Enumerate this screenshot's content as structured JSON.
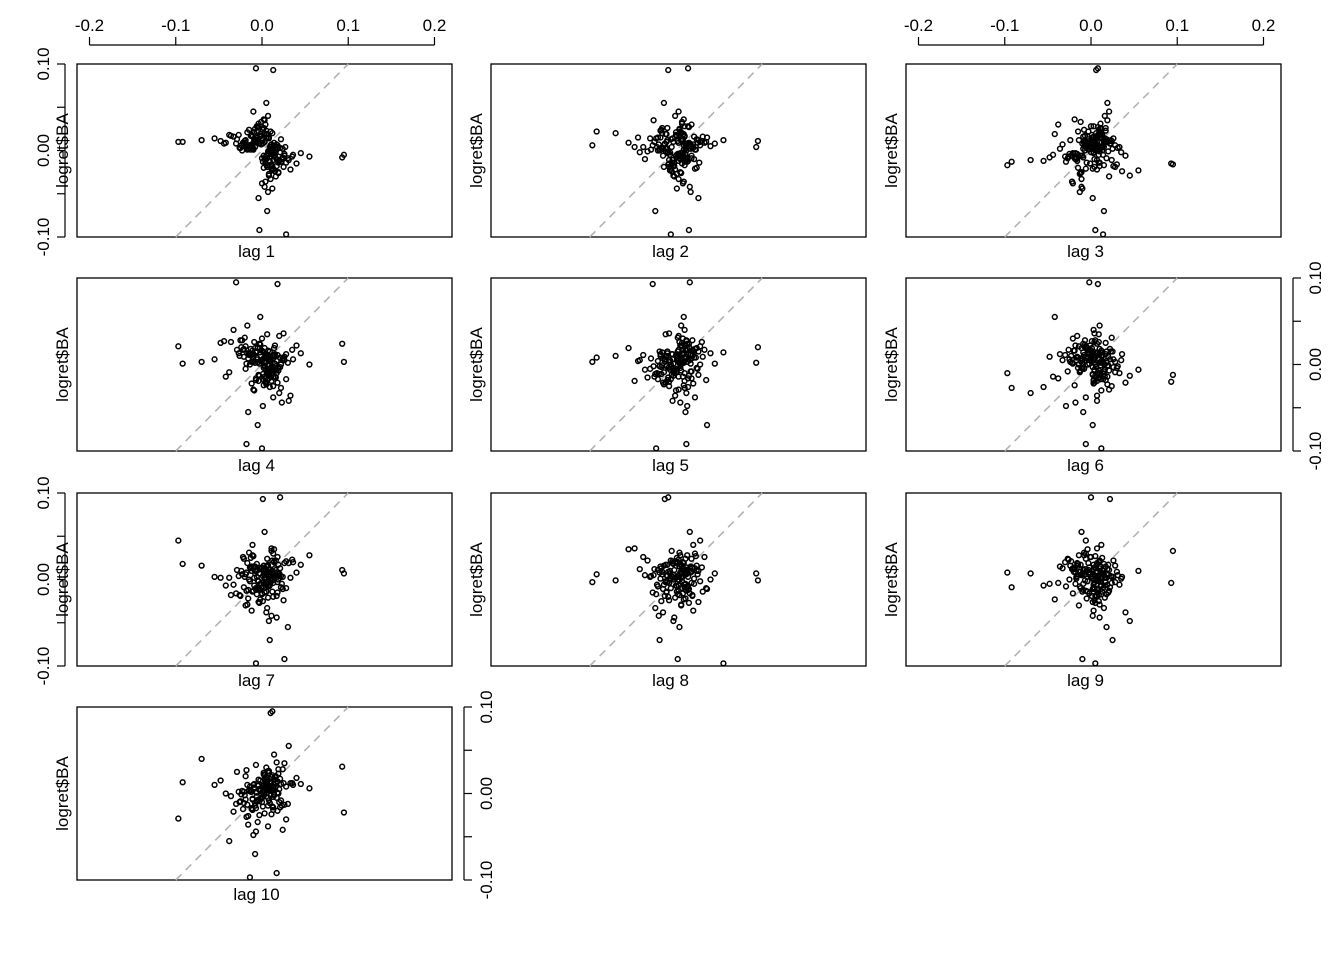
{
  "chart_data": {
    "type": "scatter",
    "title": "",
    "ylabel": "logret$BA",
    "panel_xlabels": [
      "lag 1",
      "lag 2",
      "lag 3",
      "lag 4",
      "lag 5",
      "lag 6",
      "lag 7",
      "lag 8",
      "lag 9",
      "lag 10"
    ],
    "lags": [
      1,
      2,
      3,
      4,
      5,
      6,
      7,
      8,
      9,
      10
    ],
    "xlim": [
      -0.2145,
      0.2203
    ],
    "ylim": [
      -0.1,
      0.1
    ],
    "x_ticks": [
      -0.2,
      -0.1,
      0.0,
      0.1,
      0.2
    ],
    "x_tick_labels": [
      "-0.2",
      "-0.1",
      "0.0",
      "0.1",
      "0.2"
    ],
    "y_ticks": [
      -0.1,
      -0.05,
      0.0,
      0.05,
      0.1
    ],
    "y_tick_labels": [
      "-0.10",
      "",
      "0.00",
      "",
      "0.10"
    ],
    "reference_line": {
      "type": "y=x",
      "style": "dashed",
      "color": "#b3b3b3"
    },
    "point_color": "#000000",
    "series": [
      0.004,
      -0.012,
      0.018,
      0.002,
      -0.006,
      0.011,
      -0.021,
      0.007,
      0.015,
      -0.003,
      0.009,
      -0.017,
      0.001,
      0.024,
      -0.008,
      0.013,
      -0.011,
      0.005,
      0.019,
      -0.025,
      0.003,
      0.01,
      -0.004,
      0.028,
      -0.014,
      0.006,
      -0.019,
      0.012,
      0.0,
      -0.009,
      0.021,
      -0.002,
      0.016,
      -0.03,
      0.008,
      0.014,
      -0.007,
      0.095,
      -0.005,
      0.011,
      -0.016,
      0.003,
      0.02,
      -0.012,
      0.007,
      -0.001,
      0.033,
      -0.022,
      0.009,
      0.004,
      -0.036,
      0.017,
      -0.01,
      0.002,
      0.026,
      -0.006,
      0.012,
      -0.018,
      0.005,
      0.015,
      -0.003,
      -0.092,
      0.01,
      0.022,
      -0.013,
      0.001,
      0.008,
      -0.027,
      0.018,
      0.006,
      -0.009,
      0.013,
      0.093,
      -0.008,
      0.004,
      -0.015,
      0.024,
      0.002,
      -0.02,
      0.011,
      0.007,
      -0.004,
      0.031,
      -0.011,
      0.016,
      0.003,
      -0.042,
      0.009,
      -0.002,
      0.019,
      -0.014,
      0.005,
      0.055,
      -0.007,
      0.012,
      -0.023,
      0.0,
      0.014,
      -0.006,
      0.028,
      -0.097,
      0.01,
      0.006,
      -0.017,
      0.021,
      0.003,
      -0.01,
      0.045,
      -0.003,
      0.008,
      -0.029,
      0.013,
      0.001,
      -0.013,
      0.017,
      0.007,
      -0.048,
      0.011,
      0.004,
      -0.008,
      0.025,
      -0.019,
      0.009,
      0.002,
      0.036,
      -0.005,
      0.015,
      -0.024,
      0.006,
      -0.07,
      0.012,
      0.02,
      -0.011,
      0.003,
      0.01,
      -0.033,
      0.016,
      -0.001,
      0.007,
      0.04,
      -0.015,
      0.005,
      -0.006,
      0.022,
      0.013,
      -0.021,
      0.008,
      0.0,
      -0.038,
      0.018,
      0.004,
      0.03,
      -0.009,
      0.011,
      -0.016,
      0.002,
      0.026,
      -0.004,
      -0.055,
      0.014,
      0.009,
      -0.012,
      0.006,
      0.019,
      -0.026,
      0.003,
      0.035,
      -0.007,
      0.01,
      -0.002,
      0.017,
      -0.018,
      0.005,
      0.023,
      -0.01,
      0.001,
      0.012,
      -0.044,
      0.008,
      0.015,
      -0.005,
      0.027,
      0.004,
      -0.014
    ]
  }
}
